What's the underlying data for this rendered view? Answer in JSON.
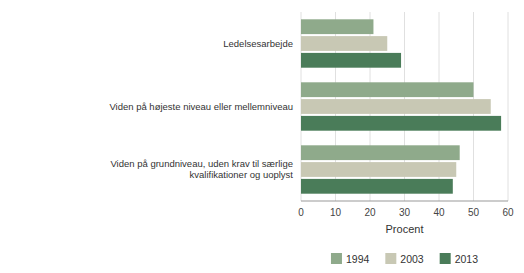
{
  "chart_data": {
    "type": "bar",
    "orientation": "horizontal",
    "categories": [
      "Viden på grundniveau, uden krav til særlige\nkvalifikationer og uoplyst",
      "Viden på højeste niveau eller mellemniveau",
      "Ledelsesarbejde"
    ],
    "series": [
      {
        "name": "1994",
        "color": "#8faa8b",
        "values": [
          46,
          50,
          21
        ]
      },
      {
        "name": "2003",
        "color": "#c8c8b4",
        "values": [
          45,
          55,
          25
        ]
      },
      {
        "name": "2013",
        "color": "#4a7c59",
        "values": [
          44,
          58,
          29
        ]
      }
    ],
    "x_label": "Procent",
    "xlim": [
      0,
      60
    ],
    "xticks": [
      0,
      10,
      20,
      30,
      40,
      50,
      60
    ],
    "grid": true,
    "legend": "bottom"
  }
}
